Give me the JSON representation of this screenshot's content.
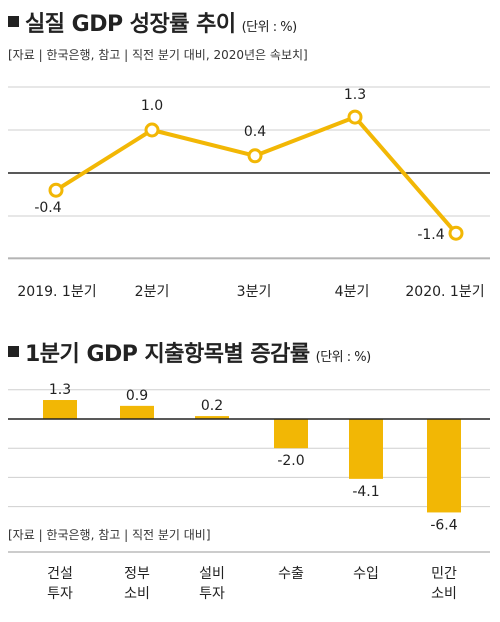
{
  "charts": [
    {
      "title": "실질 GDP 성장률 추이",
      "unit": "(단위 : %)",
      "source": "[자료 | 한국은행, 참고 | 직전 분기 대비, 2020년은 속보치]",
      "color": "#f2b705"
    },
    {
      "title": "1분기 GDP 지출항목별 증감률",
      "unit": "(단위 : %)",
      "source": "[자료 | 한국은행, 참고 | 직전 분기 대비]",
      "color": "#f2b705"
    }
  ],
  "chart_data": [
    {
      "type": "line",
      "title": "실질 GDP 성장률 추이",
      "x": [
        "2019. 1분기",
        "2분기",
        "3분기",
        "4분기",
        "2020. 1분기"
      ],
      "y": [
        -0.4,
        1.0,
        0.4,
        1.3,
        -1.4
      ],
      "data_labels": [
        "-0.4",
        "1.0",
        "0.4",
        "1.3",
        "-1.4"
      ],
      "ylabel": "%",
      "ylim": [
        -2,
        2
      ],
      "grid": true
    },
    {
      "type": "bar",
      "title": "1분기 GDP 지출항목별 증감률",
      "categories": [
        "건설 투자",
        "정부 소비",
        "설비 투자",
        "수출",
        "수입",
        "민간 소비"
      ],
      "values": [
        1.3,
        0.9,
        0.2,
        -2.0,
        -4.1,
        -6.4
      ],
      "data_labels": [
        "1.3",
        "0.9",
        "0.2",
        "-2.0",
        "-4.1",
        "-6.4"
      ],
      "ylabel": "%",
      "ylim": [
        -8,
        2
      ],
      "grid": true
    }
  ]
}
